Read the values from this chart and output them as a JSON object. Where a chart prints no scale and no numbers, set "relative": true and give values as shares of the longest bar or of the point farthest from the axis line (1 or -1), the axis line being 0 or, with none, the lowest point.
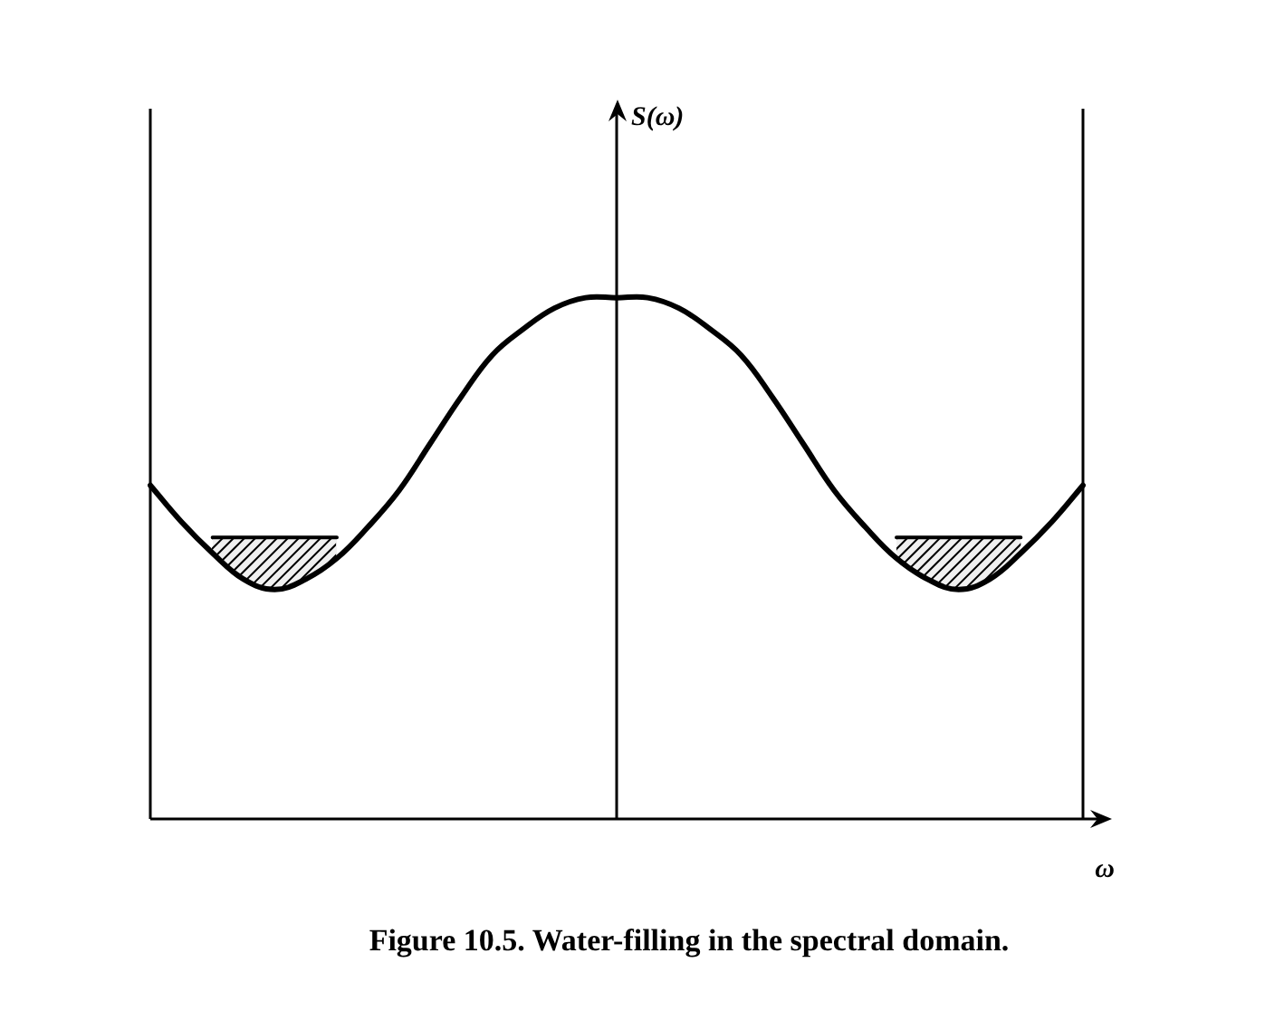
{
  "chart_data": {
    "type": "line",
    "relative": true,
    "tick_labels": false,
    "title": "Figure 10.5. Water-filling in the spectral domain.",
    "xlabel": "ω",
    "annotations": [
      "S(ω)"
    ],
    "categories": [
      null,
      null,
      null,
      null,
      null,
      null,
      null,
      null,
      null,
      null,
      null,
      null,
      null,
      null,
      null,
      null,
      null,
      null,
      null,
      null,
      null,
      null,
      null,
      null,
      null,
      null,
      null,
      null,
      null,
      null,
      null
    ],
    "series": [
      {
        "type": "line",
        "color": "#000000",
        "values": [
          0.64,
          0.57,
          0.51,
          0.46,
          0.44,
          0.46,
          0.5,
          0.56,
          0.63,
          0.72,
          0.81,
          0.89,
          0.94,
          0.98,
          1.0,
          1.0,
          1.0,
          0.98,
          0.94,
          0.89,
          0.81,
          0.72,
          0.63,
          0.56,
          0.5,
          0.46,
          0.44,
          0.46,
          0.51,
          0.57,
          0.64
        ]
      },
      {
        "type": "area",
        "color": "#000000",
        "values": [
          null,
          null,
          0.54,
          0.54,
          0.54,
          0.54,
          0.54,
          null,
          null,
          null,
          null,
          null,
          null,
          null,
          null,
          null,
          null,
          null,
          null,
          null,
          null,
          null,
          null,
          null,
          0.54,
          0.54,
          0.54,
          0.54,
          0.54,
          null,
          null
        ]
      }
    ]
  }
}
